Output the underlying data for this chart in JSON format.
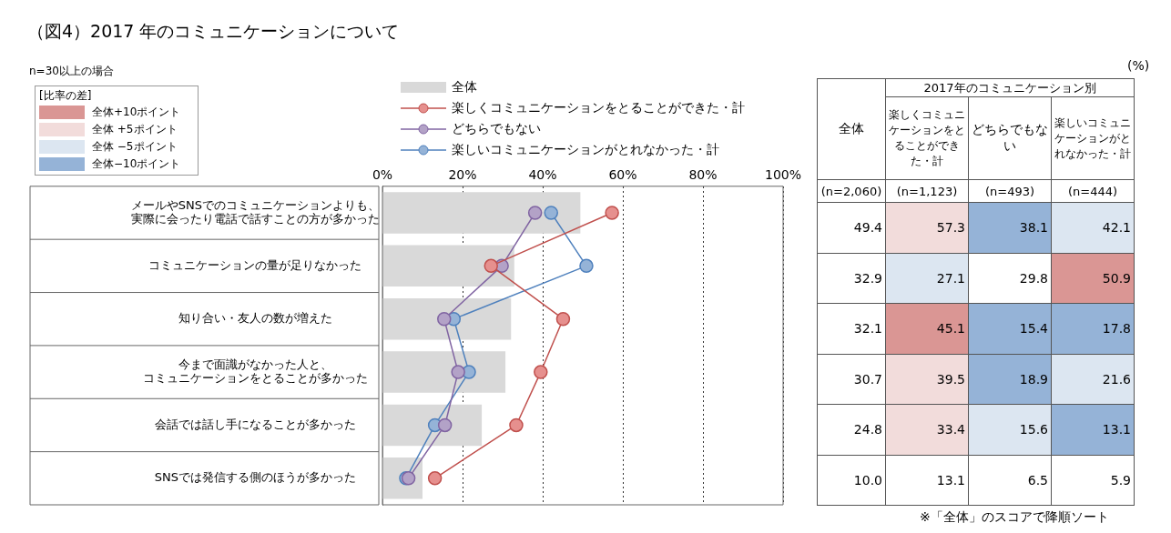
{
  "chart_data": {
    "type": "bar",
    "orientation": "horizontal",
    "title": "（図4）2017 年のコミュニケーションについて",
    "categories": [
      "メールやSNSでのコミュニケーションよりも、実際に会ったり電話で話すことの方が多かった",
      "コミュニケーションの量が足りなかった",
      "知り合い・友人の数が増えた",
      "今まで面識がなかった人と、コミュニケーションをとることが多かった",
      "会話では話し手になることが多かった",
      "SNSでは発信する側のほうが多かった"
    ],
    "series": [
      {
        "name": "全体",
        "color": "#d9d9d9",
        "values": [
          49.4,
          32.9,
          32.1,
          30.7,
          24.8,
          10.0
        ],
        "value_labels": [
          "49.4",
          "32.9",
          "32.1",
          "30.7",
          "24.8",
          "10.0"
        ]
      },
      {
        "name": "楽しくコミュニケーションをとることができた・計",
        "type": "line",
        "color": "#c0504d",
        "values": [
          57.3,
          27.1,
          45.1,
          39.5,
          33.4,
          13.1
        ],
        "value_labels": [
          "57.3",
          "27.1",
          "45.1",
          "39.5",
          "33.4",
          "13.1"
        ]
      },
      {
        "name": "どちらでもない",
        "type": "line",
        "color": "#8064a2",
        "values": [
          38.1,
          29.8,
          15.4,
          18.9,
          15.6,
          6.5
        ],
        "value_labels": [
          "38.1",
          "29.8",
          "15.4",
          "18.9",
          "15.6",
          "6.5"
        ]
      },
      {
        "name": "楽しいコミュニケーションがとれなかった・計",
        "type": "line",
        "color": "#4f81bd",
        "values": [
          42.1,
          50.9,
          17.8,
          21.6,
          13.1,
          5.9
        ],
        "value_labels": [
          "42.1",
          "50.9",
          "17.8",
          "21.6",
          "13.1",
          "5.9"
        ]
      }
    ],
    "xlim": [
      0,
      100
    ],
    "xticks": [
      {
        "value": 0,
        "label": "0%"
      },
      {
        "value": 20,
        "label": "20%"
      },
      {
        "value": 40,
        "label": "40%"
      },
      {
        "value": 60,
        "label": "60%"
      },
      {
        "value": 80,
        "label": "80%"
      },
      {
        "value": 100,
        "label": "100%"
      }
    ],
    "grid": "x",
    "legend": "top",
    "marker": "circle",
    "clabel": "[比率の差]",
    "cticks": [
      {
        "value": 10,
        "label": "全体+10ポイント"
      },
      {
        "value": 5,
        "label": "全体 +5ポイント"
      },
      {
        "value": -5,
        "label": "全体 −5ポイント"
      },
      {
        "value": -10,
        "label": "全体−10ポイント"
      }
    ],
    "annotations": [
      "n=30以上の場合",
      "(%)",
      "2017年のコミュニケーション別",
      "(n=2,060)",
      "(n=1,123)",
      "(n=493)",
      "(n=444)",
      "※「全体」のスコアで降順ソート"
    ]
  }
}
